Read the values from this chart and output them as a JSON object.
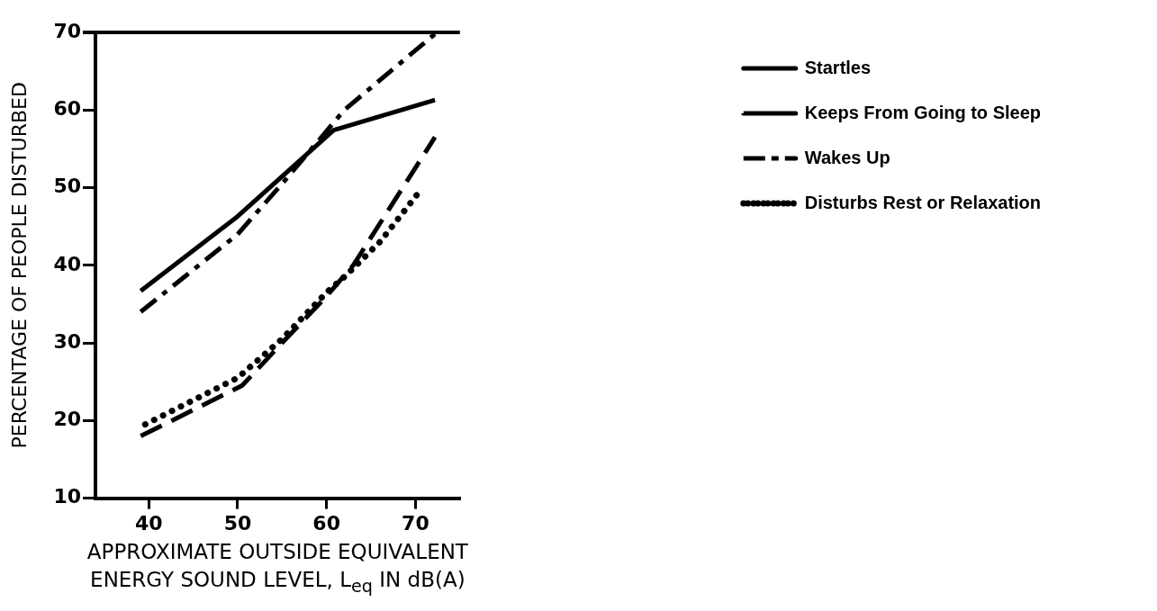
{
  "chart_data": {
    "type": "line",
    "ylabel": "PERCENTAGE OF PEOPLE DISTURBED",
    "xlabel": "APPROXIMATE OUTSIDE EQUIVALENT\nENERGY SOUND LEVEL, L$_{eq}$ IN dB(A)",
    "xlim": [
      34,
      75
    ],
    "xticks": [
      40,
      50,
      60,
      70
    ],
    "ylim": [
      10,
      70
    ],
    "yticks": [
      10,
      20,
      30,
      40,
      50,
      60,
      70
    ],
    "grid": false,
    "legend": "right",
    "marker": "none",
    "series": [
      {
        "name": "Startles",
        "color": "#000000",
        "line_style": "solid",
        "x": [
          39.1,
          50,
          60.8,
          72.2
        ],
        "values": [
          36.7,
          46.3,
          57.4,
          61.3
        ]
      },
      {
        "name": "Keeps From Going to Sleep",
        "color": "#000000",
        "line_style": "dashed",
        "x": [
          39.1,
          50.5,
          55,
          60,
          63,
          72.2
        ],
        "values": [
          18,
          24.5,
          30,
          36,
          40,
          56.5
        ]
      },
      {
        "name": "Wakes Up",
        "color": "#000000",
        "line_style": "dashdot",
        "x": [
          39.1,
          50,
          55,
          62,
          72.2
        ],
        "values": [
          34,
          44,
          50.5,
          60,
          69.8
        ]
      },
      {
        "name": "Disturbs Rest or Relaxation",
        "color": "#000000",
        "line_style": "dotted",
        "x": [
          39.6,
          50,
          55,
          60,
          62,
          66,
          70.8
        ],
        "values": [
          19.5,
          25.5,
          30.5,
          36.5,
          38.5,
          43,
          50
        ]
      }
    ]
  }
}
